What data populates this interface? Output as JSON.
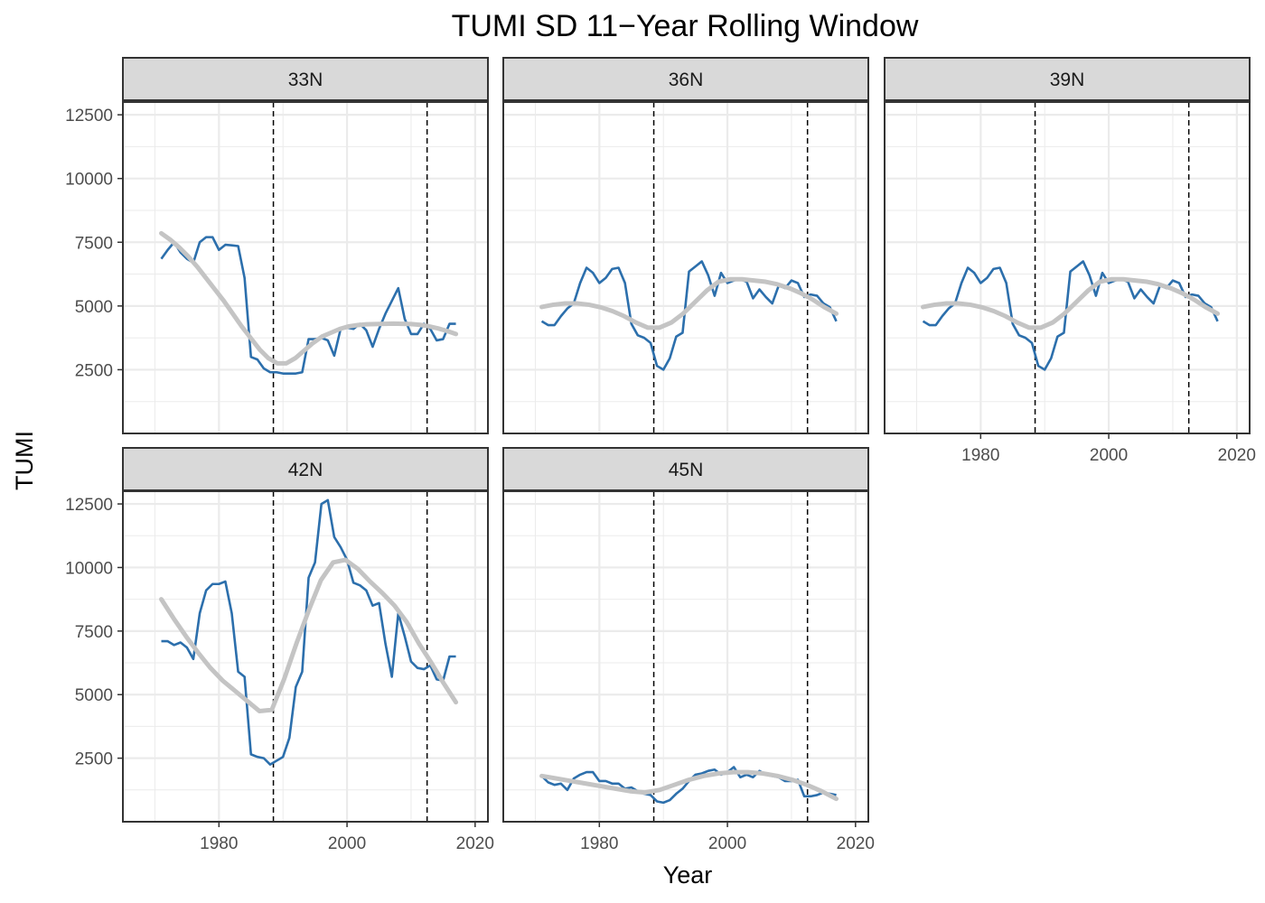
{
  "chart_data": {
    "type": "line",
    "title": "TUMI SD 11−Year Rolling Window",
    "xlabel": "Year",
    "ylabel": "TUMI",
    "xlim": [
      1965,
      2022
    ],
    "ylim": [
      0,
      13000
    ],
    "x_ticks": [
      1980,
      2000,
      2020
    ],
    "y_ticks": [
      2500,
      5000,
      7500,
      10000,
      12500
    ],
    "vlines": [
      1988.5,
      2012.5
    ],
    "grid": true,
    "facet_layout": "3 columns, 2 rows",
    "colors": {
      "series": "#2c6fac",
      "smooth": "#c4c4c4",
      "strip_fill": "#d9d9d9",
      "grid": "#ebebeb",
      "frame": "#333333"
    },
    "series_years": [
      1971,
      1972,
      1973,
      1974,
      1975,
      1976,
      1977,
      1978,
      1979,
      1980,
      1981,
      1982,
      1983,
      1984,
      1985,
      1986,
      1987,
      1988,
      1989,
      1990,
      1991,
      1992,
      1993,
      1994,
      1995,
      1996,
      1997,
      1998,
      1999,
      2000,
      2001,
      2002,
      2003,
      2004,
      2005,
      2006,
      2007,
      2008,
      2009,
      2010,
      2011,
      2012,
      2013,
      2014,
      2015,
      2016,
      2017
    ],
    "panels": [
      {
        "label": "33N",
        "values": [
          6850,
          7200,
          7500,
          7100,
          6850,
          6700,
          7500,
          7700,
          7700,
          7200,
          7400,
          7380,
          7350,
          6100,
          3000,
          2900,
          2550,
          2400,
          2400,
          2350,
          2350,
          2350,
          2400,
          3700,
          3700,
          3750,
          3650,
          3050,
          4100,
          4150,
          4100,
          4300,
          4050,
          3400,
          4100,
          4700,
          5200,
          5700,
          4500,
          3900,
          3900,
          4300,
          4100,
          3650,
          3700,
          4300,
          4300
        ],
        "smooth": [
          7850,
          7600,
          7300,
          6950,
          6550,
          6100,
          5650,
          5200,
          4700,
          4200,
          3750,
          3300,
          2950,
          2750,
          2750,
          2950,
          3250,
          3550,
          3800,
          3950,
          4100,
          4200,
          4250,
          4280,
          4290,
          4300,
          4310,
          4300,
          4290,
          4260,
          4200,
          4120,
          4020,
          3900
        ]
      },
      {
        "label": "36N",
        "values": [
          4400,
          4250,
          4250,
          4600,
          4900,
          5100,
          5900,
          6500,
          6300,
          5900,
          6100,
          6450,
          6500,
          5900,
          4300,
          3850,
          3750,
          3550,
          2650,
          2500,
          2950,
          3800,
          3950,
          6350,
          6550,
          6750,
          6200,
          5400,
          6300,
          5900,
          6000,
          6050,
          5950,
          5300,
          5650,
          5350,
          5100,
          5800,
          5700,
          6000,
          5900,
          5350,
          5450,
          5400,
          5100,
          4950,
          4400
        ],
        "smooth": [
          4960,
          5050,
          5100,
          5100,
          5050,
          4950,
          4800,
          4600,
          4350,
          4150,
          4150,
          4350,
          4700,
          5150,
          5600,
          5950,
          6050,
          6050,
          6000,
          5950,
          5850,
          5700,
          5500,
          5250,
          4950,
          4700
        ]
      },
      {
        "label": "39N",
        "values": [
          4400,
          4250,
          4250,
          4600,
          4900,
          5100,
          5900,
          6500,
          6300,
          5900,
          6100,
          6450,
          6500,
          5900,
          4300,
          3850,
          3750,
          3550,
          2650,
          2500,
          2950,
          3800,
          3950,
          6350,
          6550,
          6750,
          6200,
          5400,
          6300,
          5900,
          6000,
          6050,
          5950,
          5300,
          5650,
          5350,
          5100,
          5800,
          5700,
          6000,
          5900,
          5350,
          5450,
          5400,
          5100,
          4950,
          4400
        ],
        "smooth": [
          4960,
          5050,
          5100,
          5100,
          5050,
          4950,
          4800,
          4600,
          4350,
          4150,
          4150,
          4350,
          4700,
          5150,
          5600,
          5950,
          6050,
          6050,
          6000,
          5950,
          5850,
          5700,
          5500,
          5250,
          4950,
          4700
        ]
      },
      {
        "label": "42N",
        "values": [
          7100,
          7100,
          6950,
          7050,
          6850,
          6400,
          8200,
          9100,
          9350,
          9350,
          9450,
          8200,
          5900,
          5700,
          2650,
          2550,
          2500,
          2250,
          2400,
          2550,
          3300,
          5300,
          5900,
          9600,
          10200,
          12500,
          12650,
          11200,
          10800,
          10300,
          9400,
          9300,
          9100,
          8500,
          8600,
          7000,
          5700,
          8200,
          7300,
          6300,
          6050,
          6000,
          6150,
          5600,
          5550,
          6500,
          6500
        ],
        "smooth": [
          8750,
          8000,
          7300,
          6650,
          6050,
          5550,
          5150,
          4750,
          4350,
          4400,
          5600,
          7000,
          8300,
          9500,
          10200,
          10300,
          9950,
          9450,
          9000,
          8500,
          7850,
          7000,
          6250,
          5450,
          4700
        ]
      },
      {
        "label": "45N",
        "values": [
          1800,
          1550,
          1450,
          1500,
          1250,
          1700,
          1850,
          1950,
          1950,
          1600,
          1600,
          1500,
          1500,
          1300,
          1350,
          1200,
          1100,
          1050,
          800,
          750,
          850,
          1100,
          1300,
          1600,
          1850,
          1900,
          2000,
          2050,
          1850,
          1950,
          2150,
          1750,
          1850,
          1750,
          2000,
          1850,
          1800,
          1750,
          1600,
          1600,
          1650,
          1000,
          1000,
          1050,
          1150,
          1100,
          1050
        ],
        "smooth": [
          1800,
          1700,
          1600,
          1500,
          1400,
          1300,
          1200,
          1150,
          1250,
          1450,
          1650,
          1800,
          1900,
          1950,
          1950,
          1900,
          1800,
          1650,
          1450,
          1200,
          900
        ]
      }
    ]
  }
}
